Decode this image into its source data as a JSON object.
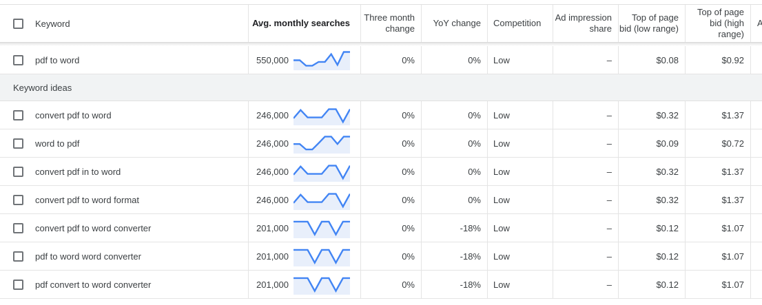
{
  "header": {
    "keyword": "Keyword",
    "sort_icon": "↓",
    "avg_monthly_searches": "Avg. monthly searches",
    "three_month_change": "Three month change",
    "yoy_change": "YoY change",
    "competition": "Competition",
    "ad_impression_share": "Ad impression share",
    "top_of_page_bid_low": "Top of page bid (low range)",
    "top_of_page_bid_high": "Top of page bid (high range)",
    "next_column_partial": "A"
  },
  "colors": {
    "spark_stroke": "#4285f4",
    "spark_fill": "#e8effb",
    "band_bg": "#f1f3f4",
    "border": "#e4e4e4",
    "text": "#3c4043"
  },
  "rows": [
    {
      "type": "keyword",
      "keyword": "pdf to word",
      "avg_monthly_searches": "550,000",
      "trend": [
        48,
        48,
        15,
        15,
        38,
        38,
        85,
        20,
        98,
        98
      ],
      "three_month_change": "0%",
      "yoy_change": "0%",
      "competition": "Low",
      "ad_impression_share": "–",
      "top_of_page_bid_low": "$0.08",
      "top_of_page_bid_high": "$0.92"
    },
    {
      "type": "section",
      "label": "Keyword ideas"
    },
    {
      "type": "keyword",
      "keyword": "convert pdf to word",
      "avg_monthly_searches": "246,000",
      "trend": [
        30,
        80,
        35,
        35,
        35,
        85,
        85,
        8,
        85
      ],
      "three_month_change": "0%",
      "yoy_change": "0%",
      "competition": "Low",
      "ad_impression_share": "–",
      "top_of_page_bid_low": "$0.32",
      "top_of_page_bid_high": "$1.37"
    },
    {
      "type": "keyword",
      "keyword": "word to pdf",
      "avg_monthly_searches": "246,000",
      "trend": [
        45,
        45,
        12,
        12,
        50,
        90,
        90,
        45,
        90,
        90
      ],
      "three_month_change": "0%",
      "yoy_change": "0%",
      "competition": "Low",
      "ad_impression_share": "–",
      "top_of_page_bid_low": "$0.09",
      "top_of_page_bid_high": "$0.72"
    },
    {
      "type": "keyword",
      "keyword": "convert pdf in to word",
      "avg_monthly_searches": "246,000",
      "trend": [
        30,
        80,
        35,
        35,
        35,
        85,
        85,
        8,
        85
      ],
      "three_month_change": "0%",
      "yoy_change": "0%",
      "competition": "Low",
      "ad_impression_share": "–",
      "top_of_page_bid_low": "$0.32",
      "top_of_page_bid_high": "$1.37"
    },
    {
      "type": "keyword",
      "keyword": "convert pdf to word format",
      "avg_monthly_searches": "246,000",
      "trend": [
        30,
        80,
        35,
        35,
        35,
        85,
        85,
        8,
        85
      ],
      "three_month_change": "0%",
      "yoy_change": "0%",
      "competition": "Low",
      "ad_impression_share": "–",
      "top_of_page_bid_low": "$0.32",
      "top_of_page_bid_high": "$1.37"
    },
    {
      "type": "keyword",
      "keyword": "convert pdf to word converter",
      "avg_monthly_searches": "201,000",
      "trend": [
        88,
        88,
        88,
        10,
        88,
        88,
        10,
        88,
        88
      ],
      "three_month_change": "0%",
      "yoy_change": "-18%",
      "competition": "Low",
      "ad_impression_share": "–",
      "top_of_page_bid_low": "$0.12",
      "top_of_page_bid_high": "$1.07"
    },
    {
      "type": "keyword",
      "keyword": "pdf to word word converter",
      "avg_monthly_searches": "201,000",
      "trend": [
        88,
        88,
        88,
        10,
        88,
        88,
        10,
        88,
        88
      ],
      "three_month_change": "0%",
      "yoy_change": "-18%",
      "competition": "Low",
      "ad_impression_share": "–",
      "top_of_page_bid_low": "$0.12",
      "top_of_page_bid_high": "$1.07"
    },
    {
      "type": "keyword",
      "keyword": "pdf convert to word converter",
      "avg_monthly_searches": "201,000",
      "trend": [
        88,
        88,
        88,
        10,
        88,
        88,
        10,
        88,
        88
      ],
      "three_month_change": "0%",
      "yoy_change": "-18%",
      "competition": "Low",
      "ad_impression_share": "–",
      "top_of_page_bid_low": "$0.12",
      "top_of_page_bid_high": "$1.07"
    }
  ]
}
